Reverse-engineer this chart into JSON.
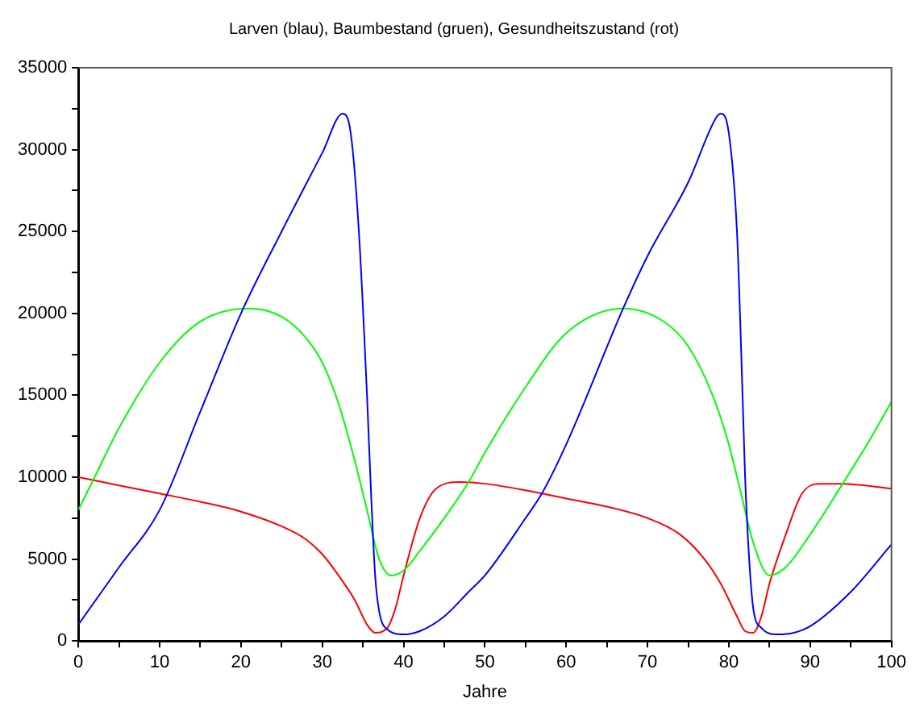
{
  "chart_data": {
    "type": "line",
    "title": "Larven (blau), Baumbestand (gruen), Gesundheitszustand (rot)",
    "xlabel": "Jahre",
    "xlim": [
      0,
      100
    ],
    "xticks": [
      0,
      {
        "value": 5,
        "label": null
      },
      10,
      {
        "value": 15,
        "label": null
      },
      20,
      {
        "value": 25,
        "label": null
      },
      30,
      {
        "value": 35,
        "label": null
      },
      40,
      {
        "value": 45,
        "label": null
      },
      50,
      {
        "value": 55,
        "label": null
      },
      60,
      {
        "value": 65,
        "label": null
      },
      70,
      {
        "value": 75,
        "label": null
      },
      80,
      {
        "value": 85,
        "label": null
      },
      90,
      {
        "value": 95,
        "label": null
      },
      100
    ],
    "ylim": [
      0,
      35000
    ],
    "yticks": [
      0,
      {
        "value": 2500,
        "label": null
      },
      5000,
      {
        "value": 7500,
        "label": null
      },
      10000,
      {
        "value": 12500,
        "label": null
      },
      15000,
      {
        "value": 17500,
        "label": null
      },
      20000,
      {
        "value": 22500,
        "label": null
      },
      25000,
      {
        "value": 27500,
        "label": null
      },
      30000,
      {
        "value": 32500,
        "label": null
      },
      35000
    ],
    "grid": false,
    "legend": false,
    "marker": "none",
    "line_style": "solid",
    "series": [
      {
        "color": "#0000ff",
        "x": [
          0,
          5,
          10,
          15,
          20,
          25,
          30,
          32.5,
          33.5,
          34.5,
          35.5,
          36,
          36.5,
          37,
          38,
          40,
          42,
          45,
          48,
          50,
          55,
          57,
          60,
          67,
          70,
          75,
          78.5,
          79,
          80,
          81,
          81.5,
          82,
          82.5,
          83,
          84,
          86,
          88,
          90,
          95,
          100
        ],
        "values": [
          1000,
          4500,
          8000,
          14000,
          20000,
          25000,
          29800,
          32200,
          31000,
          25000,
          15000,
          9000,
          4000,
          1800,
          700,
          400,
          600,
          1500,
          3000,
          4000,
          7500,
          9000,
          12000,
          20300,
          23500,
          28000,
          32000,
          32200,
          31000,
          25000,
          18000,
          10000,
          5000,
          2000,
          800,
          400,
          500,
          900,
          3000,
          5900
        ]
      },
      {
        "color": "#00ff00",
        "x": [
          0,
          2,
          5,
          10,
          15,
          21,
          25,
          28,
          30,
          32,
          34,
          35.5,
          37,
          38.5,
          40,
          42,
          45,
          48,
          50,
          55,
          60,
          67,
          72,
          75,
          78,
          80,
          81.5,
          83,
          85,
          87,
          90,
          94,
          97,
          100
        ],
        "values": [
          8000,
          10000,
          13000,
          17000,
          19500,
          20300,
          19800,
          18500,
          17000,
          14500,
          11000,
          8000,
          5000,
          4000,
          4300,
          5500,
          7500,
          9700,
          11500,
          15500,
          18800,
          20300,
          19500,
          18000,
          15000,
          12000,
          9000,
          6000,
          4000,
          4500,
          6500,
          9600,
          12000,
          14600
        ]
      },
      {
        "color": "#ff0000",
        "x": [
          0,
          5,
          10,
          15,
          20,
          25,
          28,
          30,
          32,
          34,
          35.5,
          36.5,
          38,
          39,
          40,
          42,
          44,
          47,
          50,
          55,
          60,
          65,
          70,
          74,
          77,
          79,
          81,
          82,
          83,
          84,
          85,
          87,
          89,
          91,
          94,
          100
        ],
        "values": [
          10000,
          9500,
          9000,
          8500,
          7900,
          7000,
          6200,
          5300,
          4000,
          2500,
          1000,
          500,
          800,
          2000,
          4000,
          7500,
          9300,
          9700,
          9600,
          9200,
          8700,
          8200,
          7500,
          6500,
          5000,
          3500,
          1500,
          600,
          500,
          1500,
          3500,
          6500,
          9000,
          9600,
          9600,
          9300
        ]
      }
    ]
  }
}
